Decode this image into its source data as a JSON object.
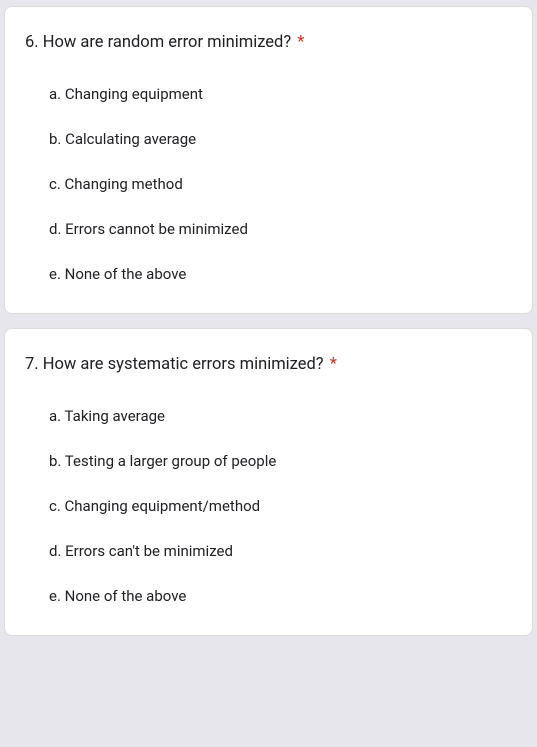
{
  "questions": [
    {
      "number": "6.",
      "text": "How are random error minimized?",
      "required": "*",
      "options": [
        "a. Changing equipment",
        "b. Calculating average",
        "c. Changing method",
        "d. Errors cannot be minimized",
        "e. None of the above"
      ]
    },
    {
      "number": "7.",
      "text": "How are systematic errors minimized?",
      "required": "*",
      "options": [
        "a. Taking average",
        "b. Testing a larger group of people",
        "c. Changing equipment/method",
        "d. Errors can't be minimized",
        "e. None of the above"
      ]
    }
  ],
  "colors": {
    "background": "#e8e6ed",
    "card_bg": "#ffffff",
    "text": "#202124",
    "required": "#d93025",
    "border": "#dadce0"
  }
}
